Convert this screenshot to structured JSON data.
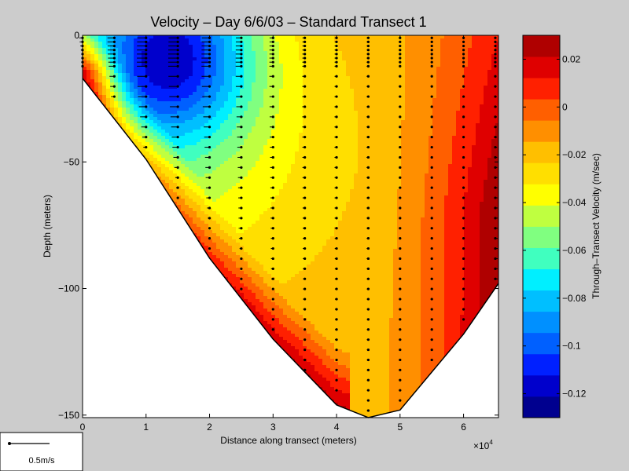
{
  "chart_data": {
    "type": "heatmap",
    "title": "Velocity – Day 6/6/03 – Standard Transect 1",
    "xlabel": "Distance along transect (meters)",
    "ylabel": "Depth (meters)",
    "x_multiplier_label": "×10",
    "x_multiplier_exponent": "4",
    "xlim": [
      0,
      6.55
    ],
    "ylim": [
      -151,
      0
    ],
    "x_ticks": [
      0,
      1,
      2,
      3,
      4,
      5,
      6
    ],
    "y_ticks": [
      0,
      -50,
      -100,
      -150
    ],
    "grid": false,
    "colorbar": {
      "label": "Through–Transect Velocity (m/sec)",
      "range": [
        -0.13,
        0.03
      ],
      "ticks": [
        0.02,
        0,
        -0.02,
        -0.04,
        -0.06,
        -0.08,
        -0.1,
        -0.12
      ],
      "tick_labels": [
        "0.02",
        "0",
        "−0.02",
        "−0.04",
        "−0.06",
        "−0.08",
        "−0.1",
        "−0.12"
      ],
      "colors": [
        "#00008f",
        "#0000cc",
        "#0020ff",
        "#0060ff",
        "#0090ff",
        "#00bfff",
        "#00efff",
        "#40ffbf",
        "#80ff80",
        "#bfff40",
        "#ffff00",
        "#ffdf00",
        "#ffbf00",
        "#ff8f00",
        "#ff5f00",
        "#ff2000",
        "#df0000",
        "#af0000"
      ]
    },
    "bottom_profile": [
      [
        0,
        -17
      ],
      [
        1,
        -49
      ],
      [
        2,
        -88
      ],
      [
        3,
        -120
      ],
      [
        4,
        -146
      ],
      [
        4.5,
        -151
      ],
      [
        5,
        -148
      ],
      [
        6,
        -118
      ],
      [
        6.55,
        -98
      ]
    ],
    "core": {
      "x": 1.35,
      "y": -7,
      "value": -0.13
    },
    "stations": [
      {
        "x": 0,
        "bottom": -17
      },
      {
        "x": 0.5,
        "bottom": -30
      },
      {
        "x": 1,
        "bottom": -49
      },
      {
        "x": 1.5,
        "bottom": -68
      },
      {
        "x": 2,
        "bottom": -88
      },
      {
        "x": 2.5,
        "bottom": -104
      },
      {
        "x": 3,
        "bottom": -120
      },
      {
        "x": 3.5,
        "bottom": -135
      },
      {
        "x": 4,
        "bottom": -146
      },
      {
        "x": 4.5,
        "bottom": -151
      },
      {
        "x": 5,
        "bottom": -148
      },
      {
        "x": 5.5,
        "bottom": -134
      },
      {
        "x": 6,
        "bottom": -118
      },
      {
        "x": 6.5,
        "bottom": -100
      }
    ],
    "scale_legend": "0.5m/s"
  }
}
